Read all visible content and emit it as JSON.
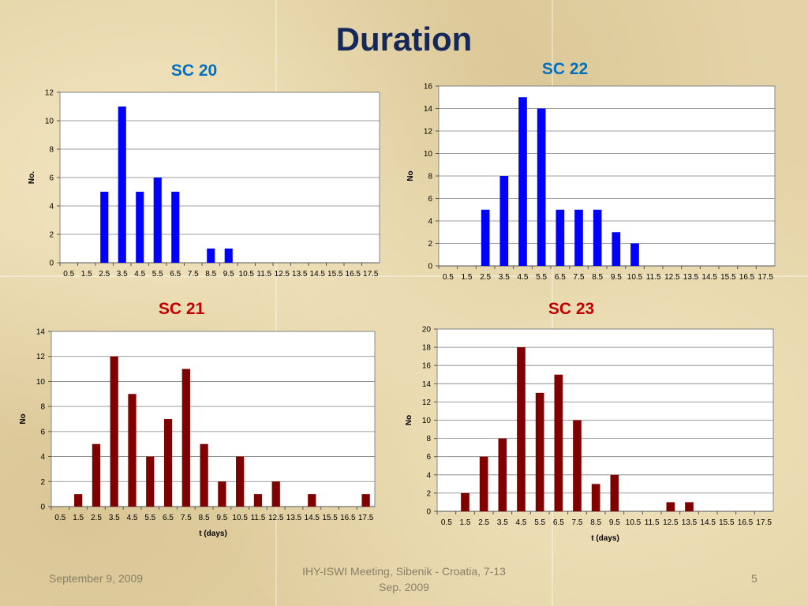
{
  "slide": {
    "title": "Duration",
    "footer_left": "September 9, 2009",
    "footer_center_line1": "IHY-ISWI Meeting, Sibenik - Croatia, 7-13",
    "footer_center_line2": "Sep. 2009",
    "page_number": "5"
  },
  "colors": {
    "title": "#14285a",
    "sc_blue": "#0070c0",
    "sc_red": "#c00000",
    "bar_blue": "#0000ff",
    "bar_red": "#800000"
  },
  "chart_data": [
    {
      "id": "sc20",
      "type": "bar",
      "title": "SC 20",
      "xlabel": "",
      "ylabel": "No.",
      "ylim": [
        0,
        12
      ],
      "ystep": 2,
      "categories": [
        "0.5",
        "1.5",
        "2.5",
        "3.5",
        "4.5",
        "5.5",
        "6.5",
        "7.5",
        "8.5",
        "9.5",
        "10.5",
        "11.5",
        "12.5",
        "13.5",
        "14.5",
        "15.5",
        "16.5",
        "17.5"
      ],
      "values": [
        0,
        0,
        5,
        11,
        5,
        6,
        5,
        0,
        1,
        1,
        0,
        0,
        0,
        0,
        0,
        0,
        0,
        0
      ],
      "color": "#0000ff",
      "grid": true
    },
    {
      "id": "sc22",
      "type": "bar",
      "title": "SC 22",
      "xlabel": "",
      "ylabel": "No",
      "ylim": [
        0,
        16
      ],
      "ystep": 2,
      "categories": [
        "0.5",
        "1.5",
        "2.5",
        "3.5",
        "4.5",
        "5.5",
        "6.5",
        "7.5",
        "8.5",
        "9.5",
        "10.5",
        "11.5",
        "12.5",
        "13.5",
        "14.5",
        "15.5",
        "16.5",
        "17.5"
      ],
      "values": [
        0,
        0,
        5,
        8,
        15,
        14,
        5,
        5,
        5,
        3,
        2,
        0,
        0,
        0,
        0,
        0,
        0,
        0
      ],
      "color": "#0000ff",
      "grid": true
    },
    {
      "id": "sc21",
      "type": "bar",
      "title": "SC 21",
      "xlabel": "t (days)",
      "ylabel": "No",
      "ylim": [
        0,
        14
      ],
      "ystep": 2,
      "categories": [
        "0.5",
        "1.5",
        "2.5",
        "3.5",
        "4.5",
        "5.5",
        "6.5",
        "7.5",
        "8.5",
        "9.5",
        "10.5",
        "11.5",
        "12.5",
        "13.5",
        "14.5",
        "15.5",
        "16.5",
        "17.5"
      ],
      "values": [
        0,
        1,
        5,
        12,
        9,
        4,
        7,
        11,
        5,
        2,
        4,
        1,
        2,
        0,
        1,
        0,
        0,
        1
      ],
      "color": "#800000",
      "grid": true
    },
    {
      "id": "sc23",
      "type": "bar",
      "title": "SC 23",
      "xlabel": "t (days)",
      "ylabel": "No",
      "ylim": [
        0,
        20
      ],
      "ystep": 2,
      "categories": [
        "0.5",
        "1.5",
        "2.5",
        "3.5",
        "4.5",
        "5.5",
        "6.5",
        "7.5",
        "8.5",
        "9.5",
        "10.5",
        "11.5",
        "12.5",
        "13.5",
        "14.5",
        "15.5",
        "16.5",
        "17.5"
      ],
      "values": [
        0,
        2,
        6,
        8,
        18,
        13,
        15,
        10,
        3,
        4,
        0,
        0,
        1,
        1,
        0,
        0,
        0,
        0
      ],
      "color": "#800000",
      "grid": true
    }
  ]
}
